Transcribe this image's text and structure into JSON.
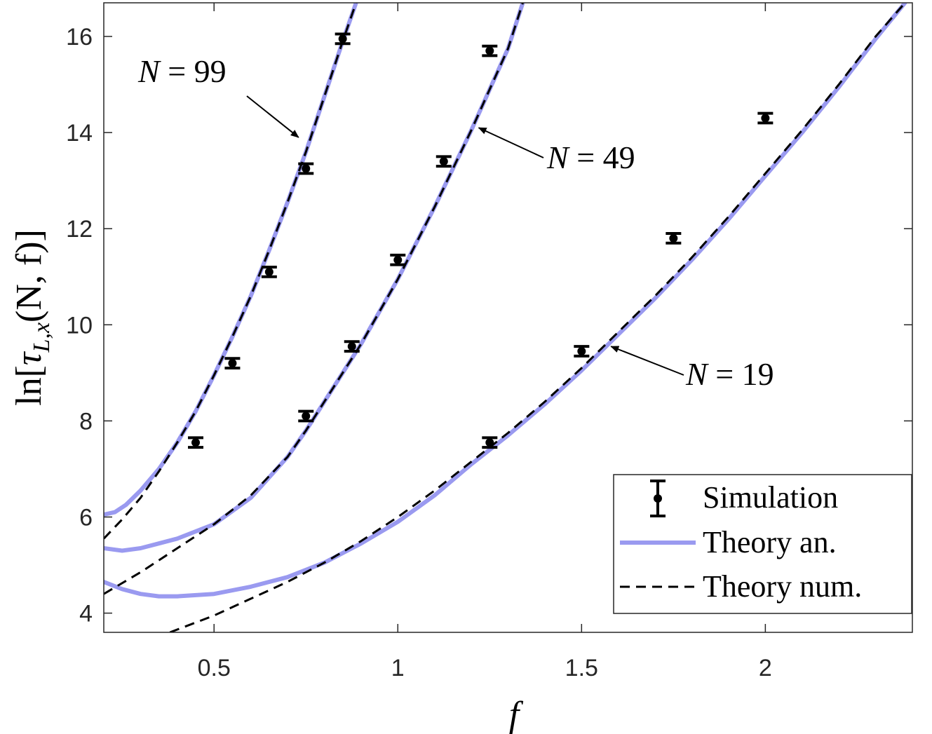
{
  "chart_data": {
    "type": "line",
    "xlabel": "f",
    "ylabel_parts": {
      "prefix": "ln[",
      "tau": "τ",
      "sub": "L,x",
      "args": "(N, f)]"
    },
    "xlim": [
      0.2,
      2.4
    ],
    "ylim": [
      3.6,
      16.7
    ],
    "xticks": [
      0.5,
      1,
      1.5,
      2
    ],
    "xtick_labels": [
      "0.5",
      "1",
      "1.5",
      "2"
    ],
    "yticks": [
      4,
      6,
      8,
      10,
      12,
      14,
      16
    ],
    "ytick_labels": [
      "4",
      "6",
      "8",
      "10",
      "12",
      "14",
      "16"
    ],
    "grid": false,
    "legend_position": "bottom-right",
    "legend": [
      {
        "label": "Simulation",
        "style": "errorbar-marker"
      },
      {
        "label": "Theory an.",
        "style": "solid"
      },
      {
        "label": "Theory num.",
        "style": "dashed"
      }
    ],
    "colors": {
      "theory_an": "#9a9af0",
      "theory_num": "#000000",
      "simulation": "#000000",
      "axes": "#262626"
    },
    "annotations": [
      {
        "text": "N = 99",
        "arrow_to": [
          0.73,
          13.9
        ]
      },
      {
        "text": "N = 49",
        "arrow_to": [
          1.22,
          14.1
        ]
      },
      {
        "text": "N = 19",
        "arrow_to": [
          1.58,
          9.55
        ]
      }
    ],
    "series": [
      {
        "N": 99,
        "simulation": {
          "x": [
            0.45,
            0.55,
            0.65,
            0.75,
            0.85
          ],
          "y": [
            7.55,
            9.2,
            11.1,
            13.25,
            15.95
          ],
          "err": 0.1
        },
        "theory_an": {
          "x": [
            0.2,
            0.23,
            0.26,
            0.3,
            0.35,
            0.4,
            0.45,
            0.5,
            0.55,
            0.6,
            0.65,
            0.7,
            0.75,
            0.8,
            0.85,
            0.9
          ],
          "y": [
            6.05,
            6.1,
            6.25,
            6.55,
            7.0,
            7.55,
            8.2,
            8.95,
            9.75,
            10.6,
            11.55,
            12.55,
            13.6,
            14.75,
            15.9,
            17.0
          ]
        },
        "theory_num": {
          "x": [
            0.2,
            0.25,
            0.3,
            0.35,
            0.4,
            0.45,
            0.5,
            0.55,
            0.6,
            0.65,
            0.7,
            0.75,
            0.8,
            0.85,
            0.9
          ],
          "y": [
            5.55,
            5.95,
            6.4,
            6.95,
            7.55,
            8.2,
            8.95,
            9.75,
            10.6,
            11.55,
            12.55,
            13.6,
            14.75,
            15.9,
            17.0
          ]
        }
      },
      {
        "N": 49,
        "simulation": {
          "x": [
            0.75,
            0.875,
            1.0,
            1.125,
            1.25
          ],
          "y": [
            8.1,
            9.55,
            11.35,
            13.4,
            15.7
          ],
          "err": 0.1
        },
        "theory_an": {
          "x": [
            0.2,
            0.25,
            0.3,
            0.35,
            0.4,
            0.5,
            0.6,
            0.7,
            0.75,
            0.8,
            0.9,
            1.0,
            1.1,
            1.2,
            1.3,
            1.34
          ],
          "y": [
            5.35,
            5.3,
            5.35,
            5.45,
            5.55,
            5.85,
            6.4,
            7.25,
            7.8,
            8.4,
            9.6,
            10.95,
            12.45,
            14.05,
            15.75,
            16.7
          ]
        },
        "theory_num": {
          "x": [
            0.2,
            0.3,
            0.4,
            0.5,
            0.6,
            0.7,
            0.75,
            0.8,
            0.9,
            1.0,
            1.1,
            1.2,
            1.3,
            1.34
          ],
          "y": [
            4.4,
            4.85,
            5.35,
            5.85,
            6.45,
            7.25,
            7.8,
            8.4,
            9.6,
            10.95,
            12.45,
            14.05,
            15.75,
            16.7
          ]
        }
      },
      {
        "N": 19,
        "simulation": {
          "x": [
            1.25,
            1.5,
            1.75,
            2.0
          ],
          "y": [
            7.55,
            9.45,
            11.8,
            14.3
          ],
          "err": 0.1
        },
        "theory_an": {
          "x": [
            0.2,
            0.25,
            0.3,
            0.35,
            0.4,
            0.5,
            0.6,
            0.7,
            0.8,
            0.9,
            1.0,
            1.1,
            1.2,
            1.3,
            1.4,
            1.5,
            1.6,
            1.7,
            1.8,
            1.9,
            2.0,
            2.1,
            2.2,
            2.3,
            2.38
          ],
          "y": [
            4.65,
            4.5,
            4.4,
            4.35,
            4.35,
            4.4,
            4.55,
            4.75,
            5.05,
            5.45,
            5.9,
            6.45,
            7.1,
            7.7,
            8.35,
            9.05,
            9.8,
            10.55,
            11.35,
            12.2,
            13.1,
            14.0,
            14.95,
            15.95,
            16.7
          ]
        },
        "theory_num": {
          "x": [
            0.38,
            0.5,
            0.6,
            0.7,
            0.8,
            0.9,
            1.0,
            1.1,
            1.2,
            1.3,
            1.4,
            1.5,
            1.6,
            1.7,
            1.8,
            1.9,
            2.0,
            2.1,
            2.2,
            2.3,
            2.38
          ],
          "y": [
            3.6,
            3.95,
            4.3,
            4.65,
            5.05,
            5.5,
            6.0,
            6.55,
            7.15,
            7.75,
            8.4,
            9.1,
            9.85,
            10.6,
            11.4,
            12.25,
            13.15,
            14.05,
            15.0,
            16.0,
            16.7
          ]
        }
      }
    ]
  }
}
